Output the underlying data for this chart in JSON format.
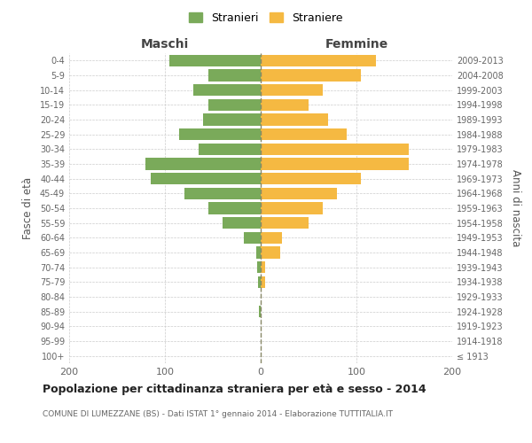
{
  "age_groups": [
    "100+",
    "95-99",
    "90-94",
    "85-89",
    "80-84",
    "75-79",
    "70-74",
    "65-69",
    "60-64",
    "55-59",
    "50-54",
    "45-49",
    "40-44",
    "35-39",
    "30-34",
    "25-29",
    "20-24",
    "15-19",
    "10-14",
    "5-9",
    "0-4"
  ],
  "birth_years": [
    "≤ 1913",
    "1914-1918",
    "1919-1923",
    "1924-1928",
    "1929-1933",
    "1934-1938",
    "1939-1943",
    "1944-1948",
    "1949-1953",
    "1954-1958",
    "1959-1963",
    "1964-1968",
    "1969-1973",
    "1974-1978",
    "1979-1983",
    "1984-1988",
    "1989-1993",
    "1994-1998",
    "1999-2003",
    "2004-2008",
    "2009-2013"
  ],
  "males": [
    0,
    0,
    0,
    2,
    0,
    3,
    4,
    5,
    18,
    40,
    55,
    80,
    115,
    120,
    65,
    85,
    60,
    55,
    70,
    55,
    95
  ],
  "females": [
    0,
    0,
    0,
    0,
    0,
    5,
    5,
    20,
    22,
    50,
    65,
    80,
    105,
    155,
    155,
    90,
    70,
    50,
    65,
    105,
    120
  ],
  "male_color": "#7aaa5a",
  "female_color": "#f5b942",
  "grid_color": "#cccccc",
  "center_line_color": "#888866",
  "bg_color": "#ffffff",
  "title": "Popolazione per cittadinanza straniera per età e sesso - 2014",
  "subtitle": "COMUNE DI LUMEZZANE (BS) - Dati ISTAT 1° gennaio 2014 - Elaborazione TUTTITALIA.IT",
  "xlabel_left": "Maschi",
  "xlabel_right": "Femmine",
  "ylabel_left": "Fasce di età",
  "ylabel_right": "Anni di nascita",
  "legend_male": "Stranieri",
  "legend_female": "Straniere",
  "xlim": 200,
  "bar_height": 0.8
}
